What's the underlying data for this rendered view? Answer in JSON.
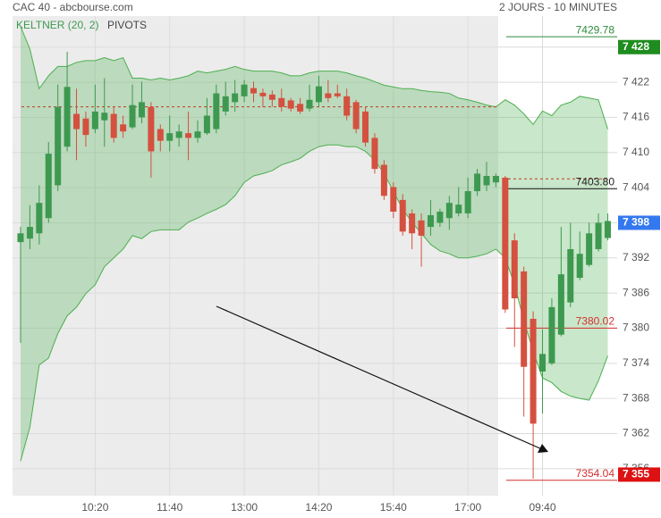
{
  "chart_data": {
    "type": "candlestick",
    "title": "CAC 40 - abcbourse.com",
    "subtitle": "2 JOURS - 10 MINUTES",
    "categories": [
      null,
      null,
      null,
      null,
      null,
      null,
      null,
      null,
      "10:20",
      null,
      null,
      null,
      null,
      null,
      null,
      null,
      "11:40",
      null,
      null,
      null,
      null,
      null,
      null,
      null,
      "13:00",
      null,
      null,
      null,
      null,
      null,
      null,
      null,
      "14:20",
      null,
      null,
      null,
      null,
      null,
      null,
      null,
      "15:40",
      null,
      null,
      null,
      null,
      null,
      null,
      null,
      "17:00",
      null,
      null,
      null,
      null,
      null,
      null,
      null,
      "09:40",
      null,
      null,
      null,
      null,
      null,
      null,
      null
    ],
    "open": [
      7394.7,
      7395.3,
      7396.2,
      7398.8,
      7404.4,
      7411,
      7416.6,
      7415.8,
      7414,
      7415.5,
      7416.6,
      7414.8,
      7414.3,
      7416,
      7417.8,
      7414,
      7412,
      7412.5,
      7413.3,
      7412.5,
      7413.3,
      7414,
      7417,
      7418.6,
      7419.6,
      7421,
      7420.2,
      7419.9,
      7419.3,
      7418.9,
      7418.3,
      7417.5,
      7418.6,
      7420.1,
      7420.1,
      7419.6,
      7418.6,
      7417,
      7412.5,
      7407.9,
      7404.1,
      7401.9,
      7399.6,
      7398.4,
      7397.3,
      7398,
      7398.8,
      7399.6,
      7399.6,
      7403.4,
      7404.4,
      7404.9,
      7405.7,
      7395,
      7389.7,
      7381.6,
      7372.6,
      7374,
      7378.9,
      7384.4,
      7388.6,
      7390.8,
      7393.5,
      7395.4
    ],
    "high": [
      7397.3,
      7401,
      7404.4,
      7411.8,
      7421.6,
      7427.2,
      7420.9,
      7417,
      7421.6,
      7422.7,
      7417.8,
      7416.3,
      7421.6,
      7422.1,
      7418.6,
      7414.8,
      7416.3,
      7414.8,
      7417,
      7415.5,
      7419.3,
      7421.6,
      7422.1,
      7422.4,
      7422.4,
      7422.1,
      7420.9,
      7420.6,
      7420.9,
      7419.3,
      7419.3,
      7421.6,
      7423.1,
      7422.4,
      7421.6,
      7420.9,
      7419,
      7417.8,
      7413.3,
      7408.7,
      7404.9,
      7402.9,
      7400.3,
      7399.6,
      7401.9,
      7400.4,
      7402.6,
      7404.1,
      7405.7,
      7407.2,
      7408.4,
      7406.4,
      7406,
      7396.2,
      7390.5,
      7382.9,
      7379.8,
      7385.1,
      7397.3,
      7398,
      7396.5,
      7398,
      7399.6,
      7399.6
    ],
    "low": [
      7377.5,
      7393.5,
      7394.3,
      7398,
      7403.4,
      7410.2,
      7408.7,
      7411,
      7413.3,
      7411,
      7411.7,
      7412.5,
      7414,
      7415,
      7405.7,
      7410.2,
      7410.2,
      7411,
      7408.7,
      7411.7,
      7413,
      7413.3,
      7416.3,
      7417,
      7418.6,
      7418.6,
      7417.8,
      7417.8,
      7417,
      7417,
      7416.6,
      7417,
      7417.8,
      7418.6,
      7419.3,
      7415.5,
      7413.3,
      7411,
      7406.4,
      7401.9,
      7398.8,
      7395.8,
      7393.5,
      7390.5,
      7395.8,
      7397.3,
      7396.8,
      7399.1,
      7398.8,
      7402.6,
      7403.4,
      7404.1,
      7382.6,
      7376.8,
      7364.9,
      7354.3,
      7365.4,
      7373.7,
      7378.6,
      7383.6,
      7388.2,
      7390.5,
      7393.1,
      7395
    ],
    "close": [
      7396.2,
      7397.3,
      7401.4,
      7409.8,
      7417.8,
      7421.2,
      7414,
      7413,
      7417,
      7416.8,
      7412.5,
      7413.6,
      7418.1,
      7418.6,
      7410.2,
      7412,
      7413.3,
      7413.6,
      7412.5,
      7413.6,
      7416.3,
      7420.1,
      7419.6,
      7420.1,
      7421.6,
      7420.1,
      7419.6,
      7419,
      7417.8,
      7417.5,
      7417,
      7419,
      7421.3,
      7419.3,
      7419.6,
      7416.3,
      7414,
      7411.7,
      7407.2,
      7402.6,
      7399.9,
      7396.5,
      7396.2,
      7395.8,
      7399.3,
      7399.9,
      7401.4,
      7401.1,
      7403.4,
      7406.4,
      7406,
      7406,
      7383.2,
      7385.1,
      7373.4,
      7363.7,
      7375.6,
      7383.6,
      7389.2,
      7393.5,
      7392.7,
      7396.2,
      7398,
      7398.3
    ],
    "up_color": "#3d9950",
    "down_color": "#d4503f",
    "ylim": [
      7351.4,
      7433.3
    ],
    "yticks": [
      {
        "value": 7356,
        "label": "7 356"
      },
      {
        "value": 7362,
        "label": "7 362"
      },
      {
        "value": 7368,
        "label": "7 368"
      },
      {
        "value": 7374,
        "label": "7 374"
      },
      {
        "value": 7380,
        "label": "7 380"
      },
      {
        "value": 7386,
        "label": "7 386"
      },
      {
        "value": 7392,
        "label": "7 392"
      },
      {
        "value": 7398,
        "label": "7 398"
      },
      {
        "value": 7404,
        "label": "7 404"
      },
      {
        "value": 7410,
        "label": "7 410"
      },
      {
        "value": 7416,
        "label": "7 416"
      },
      {
        "value": 7422,
        "label": "7 422"
      },
      {
        "value": 7428,
        "label": "7 428"
      }
    ],
    "grid": true,
    "keltner": {
      "label": "KELTNER (20, 2)",
      "color": "#4caf50",
      "upper": [
        7431.5,
        7427.7,
        7420.9,
        7423.1,
        7424.7,
        7424.7,
        7425.4,
        7425.7,
        7425.7,
        7426.2,
        7425.7,
        7426.2,
        7422.7,
        7422.7,
        7422.4,
        7422.7,
        7422.4,
        7422.7,
        7423.1,
        7423.9,
        7423.6,
        7423.9,
        7424.2,
        7424.7,
        7424.2,
        7423.9,
        7423.9,
        7423.9,
        7423.6,
        7423.1,
        7423.1,
        7423.6,
        7423.9,
        7423.9,
        7423.9,
        7423.6,
        7423.1,
        7422.7,
        7422.1,
        7421.5,
        7421.2,
        7420.9,
        7420.9,
        7420.6,
        7420.4,
        7420.3,
        7420.1,
        7419.3,
        7419,
        7418.6,
        7418.1,
        7417.8,
        7419,
        7418.1,
        7416.6,
        7414.8,
        7417.1,
        7416.3,
        7418.1,
        7418.6,
        7419.6,
        7419.3,
        7419,
        7414
      ],
      "lower": [
        7357.3,
        7363.1,
        7373.7,
        7374.9,
        7379.1,
        7382.1,
        7383.6,
        7385.9,
        7387.4,
        7390.5,
        7392,
        7393.5,
        7395.8,
        7395.3,
        7396.5,
        7396.8,
        7396.8,
        7396.8,
        7398.1,
        7398.8,
        7399.6,
        7400.3,
        7401.1,
        7402.6,
        7404.9,
        7406,
        7406.4,
        7406.9,
        7407.9,
        7408.4,
        7409,
        7410.2,
        7411,
        7411.3,
        7411.3,
        7411,
        7411,
        7410.2,
        7408.7,
        7406.4,
        7403.4,
        7400.3,
        7398.1,
        7396.2,
        7394.3,
        7393.2,
        7392.7,
        7392,
        7392,
        7392.3,
        7392.7,
        7393.5,
        7392,
        7387.4,
        7381.3,
        7376,
        7371.5,
        7370.7,
        7369.2,
        7368.4,
        7368,
        7367.7,
        7371,
        7375.3
      ]
    },
    "pivots": {
      "label": "PIVOTS",
      "previous": 7417.8,
      "current": 7405.5,
      "dash_color": "#c0392b",
      "levels": [
        {
          "value": 7429.78,
          "label": "7429.78",
          "color": "#2e8b3e"
        },
        {
          "value": 7403.8,
          "label": "7403.80",
          "color": "#222222"
        },
        {
          "value": 7380.02,
          "label": "7380.02",
          "color": "#d32f2f"
        },
        {
          "value": 7354.04,
          "label": "7354.04",
          "color": "#d32f2f"
        }
      ]
    },
    "axis_markers": [
      {
        "value": 7428,
        "label": "7 428",
        "color": "#1e8c1e"
      },
      {
        "value": 7398,
        "label": "7 398",
        "color": "#3378ee"
      },
      {
        "value": 7355,
        "label": "7 355",
        "color": "#dd1111"
      }
    ]
  }
}
